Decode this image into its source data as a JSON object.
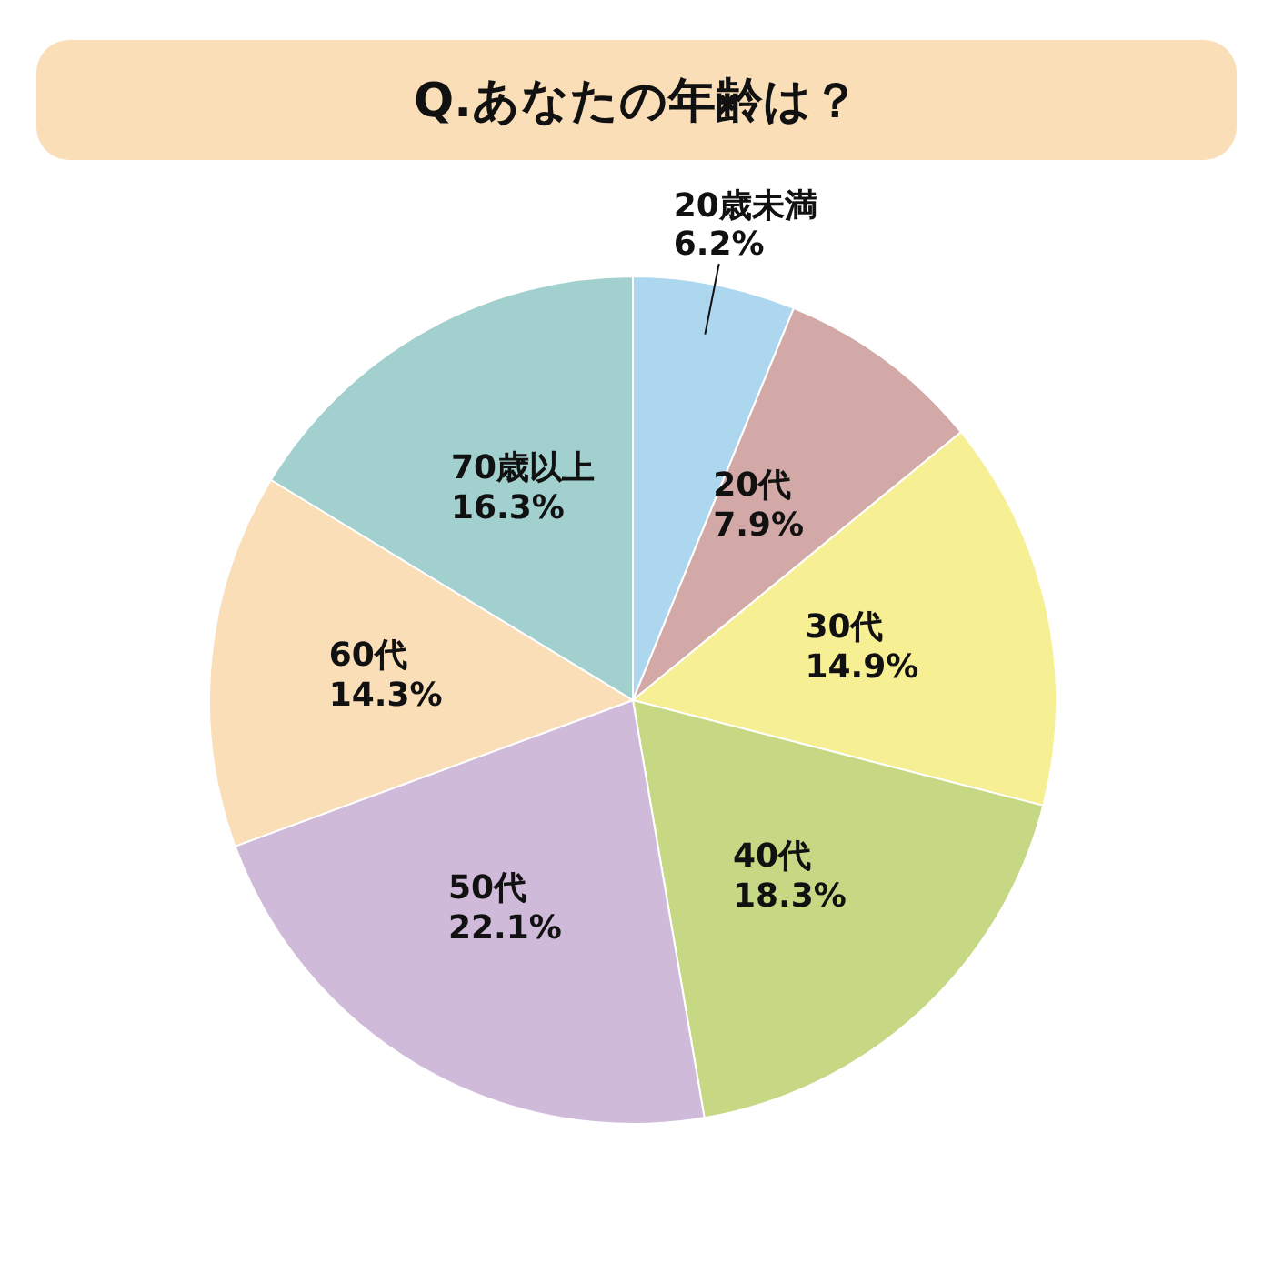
{
  "chart_data": {
    "type": "pie",
    "title": "Q.あなたの年齢は？",
    "categories": [
      "20歳未満",
      "20代",
      "30代",
      "40代",
      "50代",
      "60代",
      "70歳以上"
    ],
    "values": [
      6.2,
      7.9,
      14.9,
      18.3,
      22.1,
      14.3,
      16.3
    ],
    "colors": [
      "#acd7ee",
      "#d3a9a8",
      "#f7ef94",
      "#c6d883",
      "#cfbad9",
      "#f9deb7",
      "#a2d0ce"
    ],
    "value_labels": [
      "6.2%",
      "7.9%",
      "14.9%",
      "18.3%",
      "22.1%",
      "14.3%",
      "16.3%"
    ]
  }
}
